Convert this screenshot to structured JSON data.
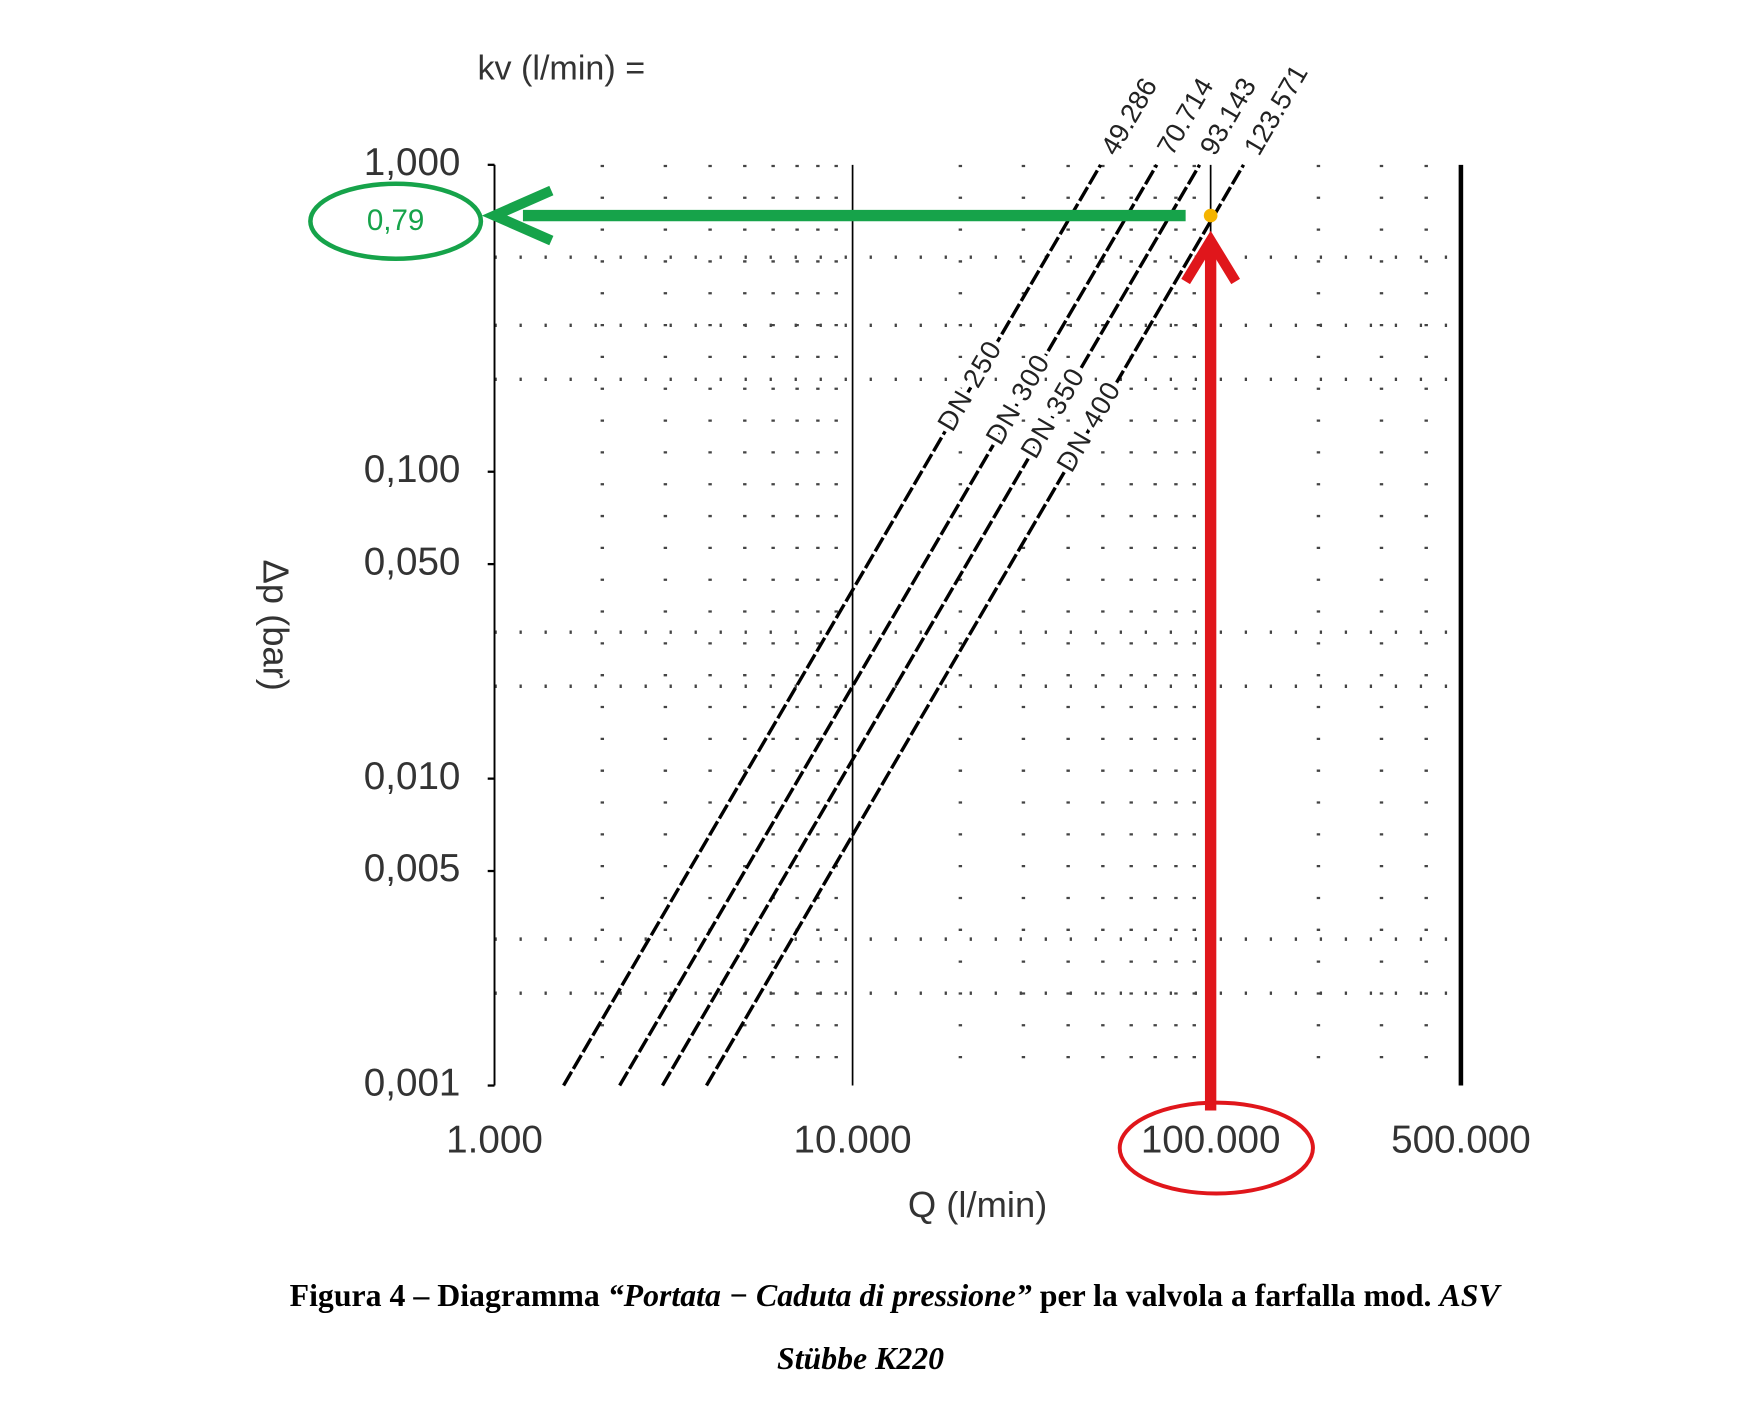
{
  "chart_data": {
    "type": "line",
    "x_label_top": "kv (l/min) =",
    "ylabel": "Δp (bar)",
    "xlabel": "Q (l/min)",
    "log_x": true,
    "log_y": true,
    "xlim": [
      1000,
      500000
    ],
    "ylim": [
      0.001,
      1
    ],
    "xticks": [
      {
        "value": 1000,
        "label": "1.000"
      },
      {
        "value": 10000,
        "label": "10.000"
      },
      {
        "value": 100000,
        "label": "100.000"
      },
      {
        "value": 500000,
        "label": "500.000"
      }
    ],
    "yticks": [
      {
        "value": 0.001,
        "label": "0,001"
      },
      {
        "value": 0.005,
        "label": "0,005"
      },
      {
        "value": 0.01,
        "label": "0,010"
      },
      {
        "value": 0.05,
        "label": "0,050"
      },
      {
        "value": 0.1,
        "label": "0,100"
      },
      {
        "value": 1,
        "label": "1,000"
      }
    ],
    "x_minor_grid": [
      2000,
      3000,
      4000,
      5000,
      6000,
      7000,
      8000,
      9000,
      20000,
      30000,
      40000,
      50000,
      60000,
      70000,
      80000,
      90000,
      200000,
      300000,
      400000
    ],
    "y_minor_grid": [
      0.002,
      0.003,
      0.02,
      0.03,
      0.2,
      0.3,
      0.5
    ],
    "series": [
      {
        "name": "DN 250",
        "kv": 49286,
        "kv_label": "49.286",
        "color": "#000000",
        "x": [
          1559,
          49286
        ],
        "values": [
          0.001,
          1
        ]
      },
      {
        "name": "DN 300",
        "kv": 70714,
        "kv_label": "70.714",
        "color": "#000000",
        "x": [
          2236,
          70714
        ],
        "values": [
          0.001,
          1
        ]
      },
      {
        "name": "DN 350",
        "kv": 93143,
        "kv_label": "93.143",
        "color": "#000000",
        "x": [
          2945,
          93143
        ],
        "values": [
          0.001,
          1
        ]
      },
      {
        "name": "DN 400",
        "kv": 123571,
        "kv_label": "123.571",
        "color": "#000000",
        "x": [
          3908,
          123571
        ],
        "values": [
          0.001,
          1
        ]
      }
    ],
    "reading": {
      "x": 100000,
      "y": 0.79,
      "label": "0,79",
      "x_color": "#e0161b",
      "y_color": "#16a34a"
    }
  },
  "caption": {
    "line1": [
      "Figura 4 – Diagramma ",
      "“",
      "Portata − Caduta di pressione",
      "”",
      " per la valvola a farfalla mod. ",
      "ASV"
    ],
    "line2": "Stübbe K220"
  }
}
